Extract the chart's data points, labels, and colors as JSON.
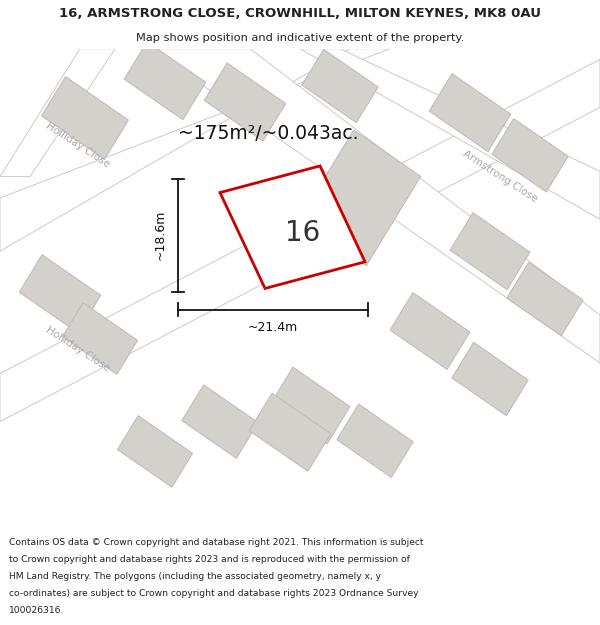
{
  "title": "16, ARMSTRONG CLOSE, CROWNHILL, MILTON KEYNES, MK8 0AU",
  "subtitle": "Map shows position and indicative extent of the property.",
  "area_label": "~175m²/~0.043ac.",
  "house_number": "16",
  "dim_width": "~21.4m",
  "dim_height": "~18.6m",
  "footer_lines": [
    "Contains OS data © Crown copyright and database right 2021. This information is subject",
    "to Crown copyright and database rights 2023 and is reproduced with the permission of",
    "HM Land Registry. The polygons (including the associated geometry, namely x, y",
    "co-ordinates) are subject to Crown copyright and database rights 2023 Ordnance Survey",
    "100026316."
  ],
  "bg_color": "#efefef",
  "road_fill": "#ffffff",
  "road_stroke": "#d0c8c8",
  "building_fill": "#d4d0cb",
  "building_stroke": "#c0bab4",
  "plot_fill": "#ffffff",
  "plot_stroke": "#cc0000",
  "street_label_color": "#aaaaaa",
  "title_color": "#222222",
  "footer_color": "#222222",
  "dim_color": "#111111"
}
